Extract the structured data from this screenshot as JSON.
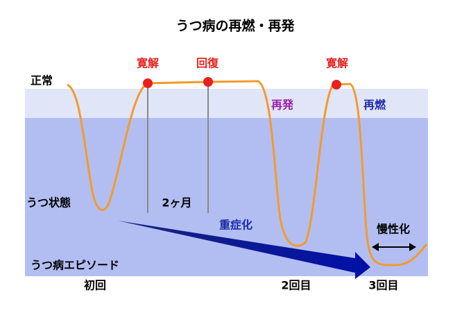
{
  "title": "うつ病の再燃・再発",
  "labels": {
    "normal": "正常",
    "remission_1": "寛解",
    "recovery": "回復",
    "remission_2": "寛解",
    "recurrence": "再発",
    "relapse": "再燃",
    "depressed_state": "うつ状態",
    "two_months": "2ヶ月",
    "worsening": "重症化",
    "chronic": "慢性化",
    "episode": "うつ病エピソード",
    "first": "初回",
    "second": "2回目",
    "third": "3回目"
  }
}
